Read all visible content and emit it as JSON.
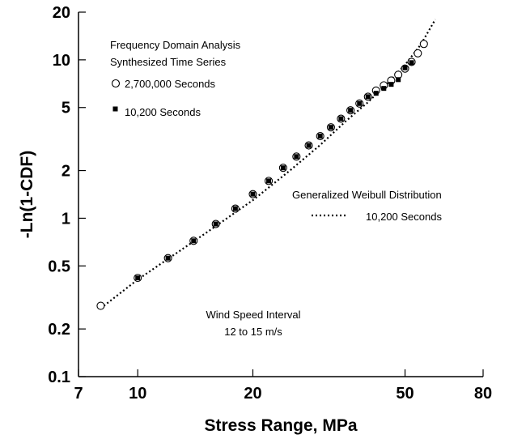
{
  "chart_data": {
    "type": "scatter",
    "xlabel": "Stress Range, MPa",
    "ylabel": "-Ln(1-CDF)",
    "x_scale": "log",
    "y_scale": "log",
    "xlim": [
      7,
      80
    ],
    "ylim": [
      0.1,
      20
    ],
    "x_ticks": [
      7,
      10,
      20,
      50,
      80
    ],
    "x_tick_labels": [
      "7",
      "10",
      "20",
      "50",
      "80"
    ],
    "y_ticks": [
      0.1,
      0.2,
      0.5,
      1,
      2,
      5,
      10,
      20
    ],
    "y_tick_labels": [
      "0.1",
      "0.2",
      "0.5",
      "1",
      "2",
      "5",
      "10",
      "20"
    ],
    "grid": false,
    "legend": {
      "header": [
        "Frequency Domain Analysis",
        "Synthesized Time Series"
      ],
      "entries": [
        "2,700,000 Seconds",
        "10,200 Seconds"
      ]
    },
    "fit_legend": {
      "title": "Generalized Weibull Distribution",
      "entry": "10,200 Seconds"
    },
    "annotation": [
      "Wind Speed Interval",
      "12 to 15 m/s"
    ],
    "series": [
      {
        "name": "2,700,000 Seconds",
        "marker": "open-circle",
        "x": [
          8.0,
          10.0,
          12.0,
          14.0,
          16.0,
          18.0,
          20.0,
          22.0,
          24.0,
          26.0,
          28.0,
          30.0,
          32.0,
          34.0,
          36.0,
          38.0,
          40.0,
          42.0,
          44.0,
          46.0,
          48.0,
          50.0,
          52.0,
          54.0,
          56.0
        ],
        "y": [
          0.28,
          0.42,
          0.56,
          0.72,
          0.92,
          1.15,
          1.42,
          1.72,
          2.08,
          2.45,
          2.88,
          3.3,
          3.75,
          4.25,
          4.8,
          5.3,
          5.85,
          6.4,
          6.9,
          7.4,
          8.05,
          8.8,
          9.7,
          11.0,
          12.6
        ]
      },
      {
        "name": "10,200 Seconds",
        "marker": "filled-square",
        "x": [
          10.0,
          12.0,
          14.0,
          16.0,
          18.0,
          20.0,
          22.0,
          24.0,
          26.0,
          28.0,
          30.0,
          32.0,
          34.0,
          36.0,
          38.0,
          40.0,
          42.0,
          44.0,
          46.0,
          48.0,
          50.0,
          52.0
        ],
        "y": [
          0.42,
          0.56,
          0.72,
          0.92,
          1.15,
          1.42,
          1.72,
          2.08,
          2.45,
          2.88,
          3.3,
          3.75,
          4.25,
          4.8,
          5.3,
          5.85,
          6.15,
          6.6,
          7.0,
          7.5,
          8.9,
          9.6
        ]
      },
      {
        "name": "10,200 Seconds",
        "marker": "dotted-line",
        "x": [
          8.0,
          10.0,
          15.0,
          20.0,
          25.0,
          30.0,
          35.0,
          40.0,
          45.0,
          50.0,
          55.0,
          60.0
        ],
        "y": [
          0.27,
          0.41,
          0.8,
          1.3,
          2.0,
          2.9,
          4.1,
          5.4,
          7.1,
          9.3,
          12.5,
          18.0
        ]
      }
    ]
  }
}
